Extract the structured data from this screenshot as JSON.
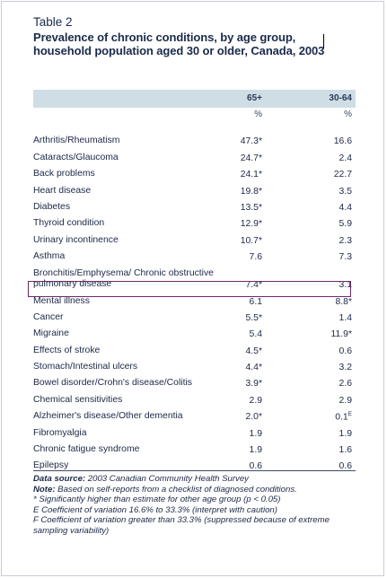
{
  "table": {
    "label": "Table 2",
    "title": "Prevalence of chronic conditions, by age group, household population aged 30 or older, Canada, 2003",
    "columns": [
      "65+",
      "30-64"
    ],
    "units": [
      "%",
      "%"
    ],
    "rows": [
      {
        "label": "Arthritis/Rheumatism",
        "v1": "47.3*",
        "v2": "16.6"
      },
      {
        "label": "Cataracts/Glaucoma",
        "v1": "24.7*",
        "v2": "2.4"
      },
      {
        "label": "Back problems",
        "v1": "24.1*",
        "v2": "22.7"
      },
      {
        "label": "Heart disease",
        "v1": "19.8*",
        "v2": "3.5"
      },
      {
        "label": "Diabetes",
        "v1": "13.5*",
        "v2": "4.4"
      },
      {
        "label": "Thyroid condition",
        "v1": "12.9*",
        "v2": "5.9"
      },
      {
        "label": "Urinary incontinence",
        "v1": "10.7*",
        "v2": "2.3"
      },
      {
        "label": "Asthma",
        "v1": "7.6",
        "v2": "7.3"
      },
      {
        "label": "Bronchitis/Emphysema/ Chronic obstructive pulmonary disease",
        "v1": "7.4*",
        "v2": "3.1"
      },
      {
        "label": "Mental illness",
        "v1": "6.1",
        "v2": "8.8*"
      },
      {
        "label": "Cancer",
        "v1": "5.5*",
        "v2": "1.4"
      },
      {
        "label": "Migraine",
        "v1": "5.4",
        "v2": "11.9*"
      },
      {
        "label": "Effects of stroke",
        "v1": "4.5*",
        "v2": "0.6"
      },
      {
        "label": "Stomach/Intestinal ulcers",
        "v1": "4.4*",
        "v2": "3.2"
      },
      {
        "label": "Bowel disorder/Crohn's disease/Colitis",
        "v1": "3.9*",
        "v2": "2.6"
      },
      {
        "label": "Chemical sensitivities",
        "v1": "2.9",
        "v2": "2.9"
      },
      {
        "label": "Alzheimer's disease/Other dementia",
        "v1": "2.0*",
        "v2": "0.1",
        "v2_sup": "E"
      },
      {
        "label": "Fibromyalgia",
        "v1": "1.9",
        "v2": "1.9"
      },
      {
        "label": "Chronic fatigue syndrome",
        "v1": "1.9",
        "v2": "1.6"
      },
      {
        "label": "Epilepsy",
        "v1": "0.6",
        "v2": "0.6"
      }
    ]
  },
  "notes": {
    "source_label": "Data source:",
    "source_text": " 2003 Canadian Community Health Survey",
    "note_label": "Note:",
    "note_text": " Based on self-reports from a checklist of diagnosed conditions.",
    "star": "* Significantly higher than estimate for other age group (p < 0.05)",
    "e": "E Coefficient of variation 16.6% to 33.3% (interpret with caution)",
    "f": "F Coefficient of variation greater than 33.3% (suppressed because of extreme sampling variability)"
  }
}
